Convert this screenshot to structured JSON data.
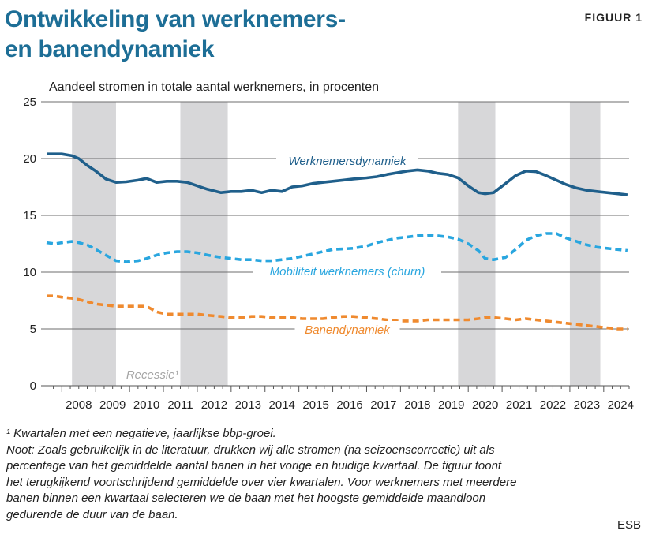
{
  "header": {
    "title_line1": "Ontwikkeling van werknemers-",
    "title_line2": "en banendynamiek",
    "figure_label": "FIGUUR 1",
    "subtitle": "Aandeel stromen in totale aantal werknemers, in procenten"
  },
  "chart_data": {
    "type": "line",
    "title": "Ontwikkeling van werknemers- en banendynamiek",
    "ylabel": "Aandeel stromen in totale aantal werknemers, in procenten",
    "ylim": [
      0,
      25
    ],
    "yticks": [
      0,
      5,
      10,
      15,
      20,
      25
    ],
    "xlim": [
      2007.55,
      2024.75
    ],
    "xticks": [
      "2008",
      "2009",
      "2010",
      "2011",
      "2012",
      "2013",
      "2014",
      "2015",
      "2016",
      "2017",
      "2018",
      "2019",
      "2020",
      "2021",
      "2022",
      "2023",
      "2024"
    ],
    "grid": true,
    "recession_label": "Recessie¹",
    "recessions": [
      [
        2008.3,
        2009.6
      ],
      [
        2011.5,
        2012.9
      ],
      [
        2019.7,
        2020.8
      ],
      [
        2023.0,
        2023.9
      ]
    ],
    "series": [
      {
        "name": "Werknemersdynamiek",
        "color": "#1f5f8b",
        "style": "solid",
        "x": [
          2007.55,
          2007.8,
          2008.0,
          2008.3,
          2008.5,
          2008.75,
          2009.0,
          2009.3,
          2009.6,
          2009.9,
          2010.25,
          2010.5,
          2010.8,
          2011.1,
          2011.4,
          2011.7,
          2012.0,
          2012.3,
          2012.7,
          2013.0,
          2013.3,
          2013.6,
          2013.9,
          2014.2,
          2014.5,
          2014.8,
          2015.1,
          2015.4,
          2015.7,
          2016.0,
          2016.3,
          2016.6,
          2017.0,
          2017.3,
          2017.6,
          2017.9,
          2018.2,
          2018.5,
          2018.8,
          2019.1,
          2019.4,
          2019.7,
          2020.0,
          2020.3,
          2020.5,
          2020.75,
          2021.1,
          2021.4,
          2021.7,
          2022.0,
          2022.3,
          2022.6,
          2022.9,
          2023.2,
          2023.5,
          2023.8,
          2024.1,
          2024.4,
          2024.7
        ],
        "values": [
          20.4,
          20.4,
          20.4,
          20.25,
          20.0,
          19.4,
          18.9,
          18.2,
          17.9,
          17.95,
          18.1,
          18.25,
          17.9,
          18.0,
          18.0,
          17.9,
          17.6,
          17.3,
          17.0,
          17.1,
          17.1,
          17.2,
          17.0,
          17.2,
          17.1,
          17.5,
          17.6,
          17.8,
          17.9,
          18.0,
          18.1,
          18.2,
          18.3,
          18.4,
          18.6,
          18.75,
          18.9,
          19.0,
          18.9,
          18.7,
          18.6,
          18.3,
          17.6,
          17.0,
          16.9,
          17.0,
          17.8,
          18.5,
          18.9,
          18.85,
          18.5,
          18.1,
          17.7,
          17.4,
          17.2,
          17.1,
          17.0,
          16.9,
          16.8
        ]
      },
      {
        "name": "Mobiliteit werknemers (churn)",
        "color": "#29a6df",
        "style": "dashed",
        "x": [
          2007.55,
          2007.8,
          2008.0,
          2008.3,
          2008.5,
          2008.75,
          2009.0,
          2009.3,
          2009.6,
          2009.9,
          2010.25,
          2010.5,
          2010.8,
          2011.1,
          2011.4,
          2011.7,
          2012.0,
          2012.3,
          2012.7,
          2013.0,
          2013.3,
          2013.6,
          2013.9,
          2014.2,
          2014.5,
          2014.8,
          2015.1,
          2015.4,
          2015.7,
          2016.0,
          2016.3,
          2016.6,
          2017.0,
          2017.3,
          2017.6,
          2017.9,
          2018.2,
          2018.5,
          2018.8,
          2019.1,
          2019.4,
          2019.7,
          2020.0,
          2020.3,
          2020.5,
          2020.75,
          2021.1,
          2021.4,
          2021.7,
          2022.0,
          2022.3,
          2022.6,
          2022.9,
          2023.2,
          2023.5,
          2023.8,
          2024.1,
          2024.4,
          2024.7
        ],
        "values": [
          12.6,
          12.5,
          12.6,
          12.7,
          12.6,
          12.4,
          12.0,
          11.5,
          11.0,
          10.9,
          11.0,
          11.2,
          11.5,
          11.7,
          11.8,
          11.8,
          11.7,
          11.5,
          11.3,
          11.2,
          11.1,
          11.1,
          11.0,
          11.0,
          11.1,
          11.2,
          11.4,
          11.6,
          11.8,
          12.0,
          12.05,
          12.1,
          12.3,
          12.6,
          12.8,
          13.0,
          13.1,
          13.2,
          13.25,
          13.2,
          13.1,
          12.9,
          12.5,
          11.9,
          11.2,
          11.1,
          11.3,
          12.0,
          12.8,
          13.2,
          13.4,
          13.4,
          13.0,
          12.7,
          12.4,
          12.2,
          12.1,
          12.0,
          11.9
        ]
      },
      {
        "name": "Banendynamiek",
        "color": "#ef8a2f",
        "style": "dashed",
        "x": [
          2007.55,
          2007.8,
          2008.0,
          2008.3,
          2008.5,
          2008.75,
          2009.0,
          2009.3,
          2009.6,
          2009.9,
          2010.25,
          2010.5,
          2010.8,
          2011.1,
          2011.4,
          2011.7,
          2012.0,
          2012.3,
          2012.7,
          2013.0,
          2013.3,
          2013.6,
          2013.9,
          2014.2,
          2014.5,
          2014.8,
          2015.1,
          2015.4,
          2015.7,
          2016.0,
          2016.3,
          2016.6,
          2017.0,
          2017.3,
          2017.6,
          2017.9,
          2018.2,
          2018.5,
          2018.8,
          2019.1,
          2019.4,
          2019.7,
          2020.0,
          2020.3,
          2020.5,
          2020.75,
          2021.1,
          2021.4,
          2021.7,
          2022.0,
          2022.3,
          2022.6,
          2022.9,
          2023.2,
          2023.5,
          2023.8,
          2024.1,
          2024.4,
          2024.7
        ],
        "values": [
          7.9,
          7.9,
          7.8,
          7.7,
          7.6,
          7.4,
          7.2,
          7.1,
          7.0,
          7.0,
          7.0,
          7.0,
          6.5,
          6.3,
          6.3,
          6.3,
          6.3,
          6.2,
          6.1,
          6.0,
          6.0,
          6.1,
          6.1,
          6.0,
          6.0,
          6.0,
          5.9,
          5.9,
          5.9,
          6.0,
          6.1,
          6.1,
          6.0,
          5.9,
          5.8,
          5.7,
          5.7,
          5.7,
          5.8,
          5.8,
          5.8,
          5.8,
          5.8,
          5.9,
          6.0,
          6.0,
          5.9,
          5.8,
          5.9,
          5.8,
          5.7,
          5.6,
          5.5,
          5.4,
          5.3,
          5.2,
          5.1,
          5.0,
          5.0
        ]
      }
    ]
  },
  "footnote": {
    "line1": "¹ Kwartalen met een negatieve, jaarlijkse bbp-groei.",
    "line2": "Noot: Zoals gebruikelijk in de literatuur, drukken wij alle stromen (na seizoenscorrectie) uit als",
    "line3": "percentage van het gemiddelde aantal banen in het vorige en huidige kwartaal. De figuur toont",
    "line4": "het terugkijkend voortschrijdend gemiddelde over vier kwartalen. Voor werknemers met meerdere",
    "line5": "banen binnen een kwartaal selecteren we de baan met het hoogste gemiddelde maandloon",
    "line6": "gedurende de duur van de baan."
  },
  "source": "ESB"
}
